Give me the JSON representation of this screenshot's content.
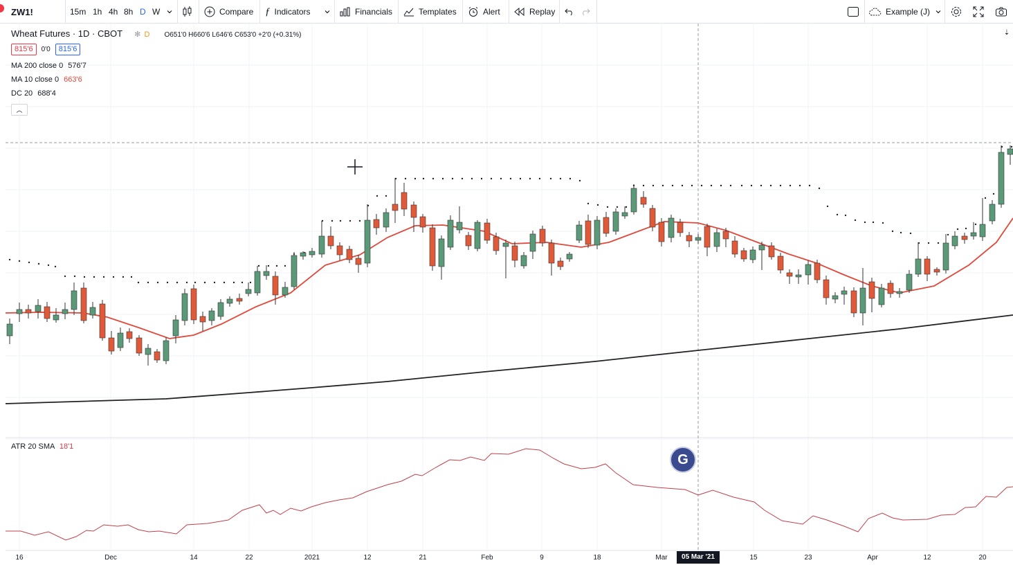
{
  "toolbar": {
    "symbol": "ZW1!",
    "intervals": [
      "15m",
      "1h",
      "4h",
      "8h",
      "D",
      "W"
    ],
    "active_interval": "D",
    "compare": "Compare",
    "indicators": "Indicators",
    "financials": "Financials",
    "templates": "Templates",
    "alert": "Alert",
    "replay": "Replay",
    "layout_name": "Example (J)"
  },
  "legend": {
    "title": "Wheat Futures · 1D · CBOT",
    "flag": "D",
    "ohlc": "O651'0 H660'6 L646'6 C653'0 +2'0 (+0.31%)",
    "bid": "815'6",
    "spread": "0'0",
    "ask": "815'6",
    "ma200_label": "MA 200 close 0",
    "ma200_value": "576'7",
    "ma10_label": "MA 10 close 0",
    "ma10_value": "663'6",
    "dc_label": "DC 20",
    "dc_value": "688'4"
  },
  "atr": {
    "label": "ATR 20 SMA",
    "value": "18'1"
  },
  "x_axis": {
    "labels": [
      "16",
      "Dec",
      "14",
      "22",
      "2021",
      "12",
      "21",
      "Feb",
      "9",
      "18",
      "Mar",
      "15",
      "23",
      "Apr",
      "12",
      "20"
    ],
    "crosshair_label": "05 Mar '21"
  },
  "colors": {
    "up": "#5b9a78",
    "down": "#e05a3a",
    "ma10": "#e0483a",
    "ma200": "#222222",
    "atr": "#c0404a",
    "donchian": "#222222"
  },
  "chart_data": {
    "type": "candlestick",
    "title": "Wheat Futures · 1D · CBOT",
    "series": [
      {
        "name": "MA 200 close 0"
      },
      {
        "name": "MA 10 close 0"
      },
      {
        "name": "DC 20"
      }
    ],
    "crosshair": "05 Mar '21",
    "last_ma200": "576'7",
    "last_ma10": "663'6",
    "last_dc": "688'4"
  }
}
